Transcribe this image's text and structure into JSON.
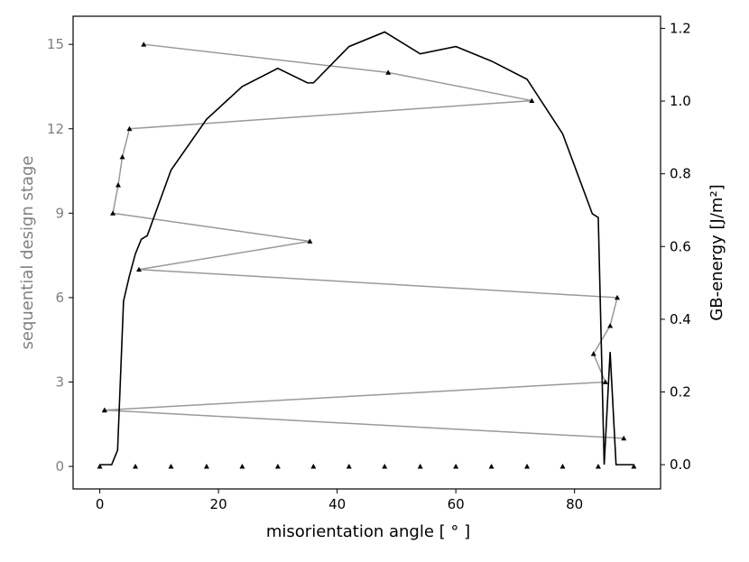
{
  "chart_data": {
    "type": "line",
    "xlabel": "misorientation angle [ ° ]",
    "ylabel_left": "sequential design stage",
    "ylabel_right": "GB-energy [J/m²]",
    "xlim": [
      -4.5,
      94.5
    ],
    "ylim_left": [
      -0.8,
      16
    ],
    "ylim_right": [
      -0.0667,
      1.2333
    ],
    "x_ticks": [
      0,
      20,
      40,
      60,
      80
    ],
    "y_left_ticks": [
      0,
      3,
      6,
      9,
      12,
      15
    ],
    "y_right_ticks": [
      0.0,
      0.2,
      0.4,
      0.6,
      0.8,
      1.0,
      1.2
    ],
    "colors": {
      "stage_series": "#999999",
      "energy_series": "#000000",
      "left_axis_text": "#808080"
    },
    "series": [
      {
        "role": "sequential design stage",
        "axis": "left",
        "x": [
          0,
          6,
          12,
          18,
          24,
          30,
          36,
          42,
          48,
          54,
          60,
          66,
          72,
          78,
          84,
          90
        ],
        "y": [
          0,
          0,
          0,
          0,
          0,
          0,
          0,
          0,
          0,
          0,
          0,
          0,
          0,
          0,
          0,
          0
        ],
        "connected": false
      },
      {
        "role": "sequential design stage",
        "axis": "left",
        "x": [
          0.8,
          88.3,
          0.8,
          85.2,
          83.2,
          86.0,
          87.2,
          6.6,
          35.4,
          2.2,
          3.1,
          3.8,
          5.0,
          72.8,
          48.6,
          7.4
        ],
        "y": [
          2,
          1,
          2,
          3,
          4,
          5,
          6,
          7,
          8,
          9,
          10,
          11,
          12,
          13,
          14,
          15
        ],
        "connected": true
      },
      {
        "role": "GB-energy",
        "axis": "right",
        "x": [
          0,
          2,
          3,
          4,
          5,
          6,
          7,
          8,
          12,
          18,
          24,
          30,
          35,
          36,
          42,
          48,
          54,
          60,
          66,
          72,
          78,
          83,
          84,
          85,
          86,
          87,
          89,
          90
        ],
        "y": [
          0.0,
          0.0,
          0.04,
          0.45,
          0.52,
          0.58,
          0.62,
          0.63,
          0.81,
          0.95,
          1.04,
          1.09,
          1.05,
          1.05,
          1.15,
          1.19,
          1.13,
          1.15,
          1.11,
          1.06,
          0.91,
          0.69,
          0.68,
          0.0,
          0.31,
          0.0,
          0.0,
          0.0
        ]
      }
    ]
  }
}
